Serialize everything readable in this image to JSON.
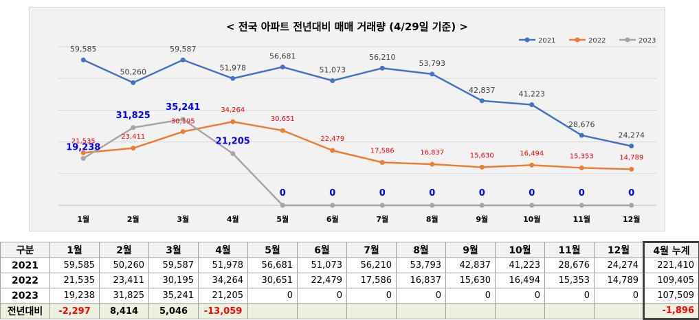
{
  "chart_data": {
    "type": "line",
    "title": "< 전국 아파트 전년대비 매매 거래량 (4/29일 기준) >",
    "categories": [
      "1월",
      "2월",
      "3월",
      "4월",
      "5월",
      "6월",
      "7월",
      "8월",
      "9월",
      "10월",
      "11월",
      "12월"
    ],
    "ylim": [
      0,
      65000
    ],
    "grid": true,
    "legend_position": "top-right",
    "series": [
      {
        "name": "2021",
        "color": "#4472c4",
        "label_color": "#404040",
        "values": [
          59585,
          50260,
          59587,
          51978,
          56681,
          51073,
          56210,
          53793,
          42837,
          41223,
          28676,
          24274
        ],
        "labels": [
          "59,585",
          "50,260",
          "59,587",
          "51,978",
          "56,681",
          "51,073",
          "56,210",
          "53,793",
          "42,837",
          "41,223",
          "28,676",
          "24,274"
        ]
      },
      {
        "name": "2022",
        "color": "#ed7d31",
        "label_color": "#ff0000",
        "values": [
          21535,
          23411,
          30195,
          34264,
          30651,
          22479,
          17586,
          16837,
          15630,
          16494,
          15353,
          14789
        ],
        "labels": [
          "21,535",
          "23,411",
          "30,195",
          "34,264",
          "30,651",
          "22,479",
          "17,586",
          "16,837",
          "15,630",
          "16,494",
          "15,353",
          "14,789"
        ]
      },
      {
        "name": "2023",
        "color": "#a5a5a5",
        "label_color": "#0000ff",
        "values": [
          19238,
          31825,
          35241,
          21205,
          0,
          0,
          0,
          0,
          0,
          0,
          0,
          0
        ],
        "labels": [
          "19,238",
          "31,825",
          "35,241",
          "21,205",
          "0",
          "0",
          "0",
          "0",
          "0",
          "0",
          "0",
          "0"
        ]
      }
    ]
  },
  "table": {
    "header": {
      "label": "구분",
      "months": [
        "1월",
        "2월",
        "3월",
        "4월",
        "5월",
        "6월",
        "7월",
        "8월",
        "9월",
        "10월",
        "11월",
        "12월"
      ],
      "cumulative": "4월 누계"
    },
    "rows": [
      {
        "label": "2021",
        "cells": [
          "59,585",
          "50,260",
          "59,587",
          "51,978",
          "56,681",
          "51,073",
          "56,210",
          "53,793",
          "42,837",
          "41,223",
          "28,676",
          "24,274"
        ],
        "cumulative": "221,410"
      },
      {
        "label": "2022",
        "cells": [
          "21,535",
          "23,411",
          "30,195",
          "34,264",
          "30,651",
          "22,479",
          "17,586",
          "16,837",
          "15,630",
          "16,494",
          "15,353",
          "14,789"
        ],
        "cumulative": "109,405"
      },
      {
        "label": "2023",
        "cells": [
          "19,238",
          "31,825",
          "35,241",
          "21,205",
          "0",
          "0",
          "0",
          "0",
          "0",
          "0",
          "0",
          "0"
        ],
        "cumulative": "107,509"
      }
    ],
    "diff": {
      "label": "전년대비",
      "cells": [
        "-2,297",
        "8,414",
        "5,046",
        "-13,059",
        "",
        "",
        "",
        "",
        "",
        "",
        "",
        ""
      ],
      "cumulative": "-1,896"
    }
  }
}
